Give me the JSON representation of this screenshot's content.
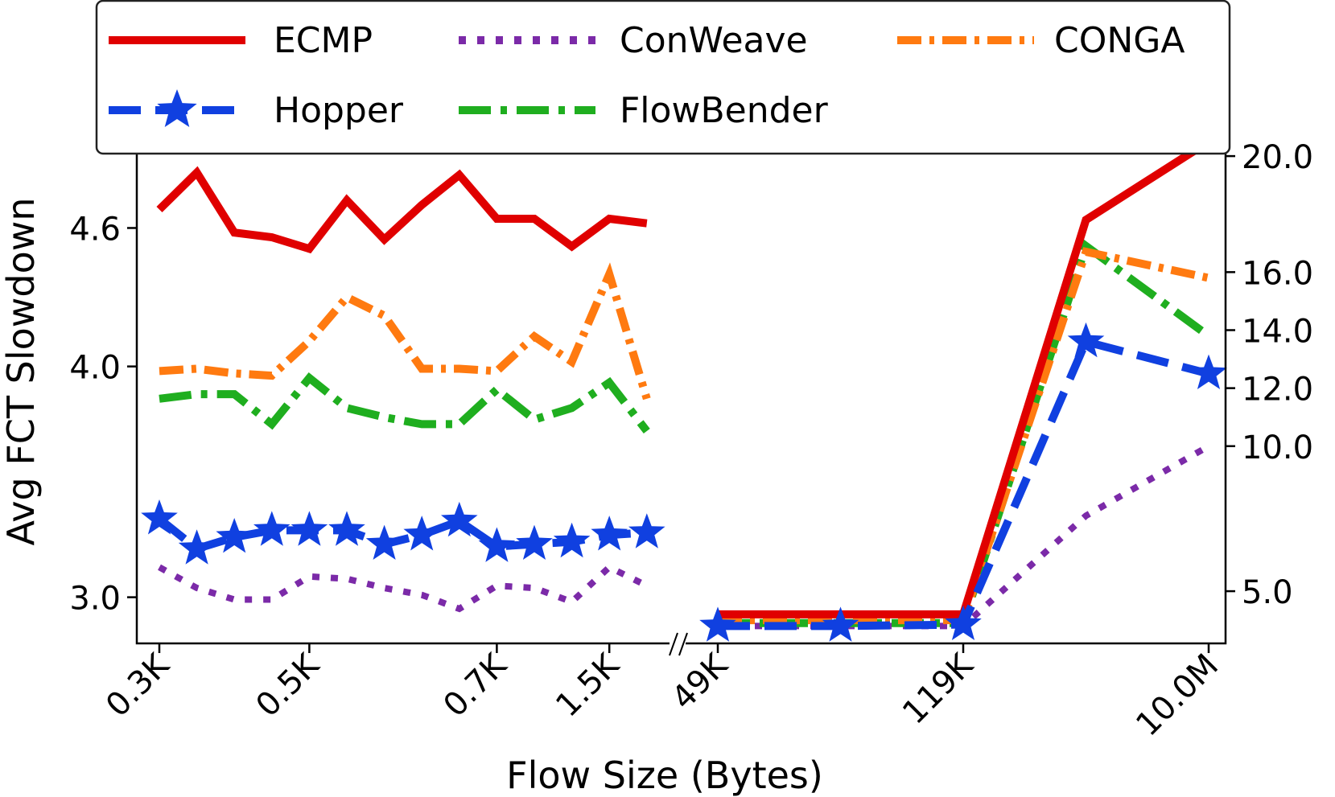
{
  "chart_data": {
    "type": "line",
    "xlabel": "Flow Size (Bytes)",
    "ylabel": "Avg FCT Slowdown",
    "left_panel": {
      "ylim": [
        2.8,
        5.1
      ],
      "yticks": [
        3.0,
        4.0,
        4.6
      ],
      "ytick_labels": [
        "3.0",
        "4.0",
        "4.6"
      ],
      "x_count": 14,
      "xticks": [
        {
          "index": 0,
          "label": "0.3K"
        },
        {
          "index": 4,
          "label": "0.5K"
        },
        {
          "index": 9,
          "label": "0.7K"
        },
        {
          "index": 12,
          "label": "1.5K"
        }
      ],
      "series": [
        {
          "name": "ECMP",
          "values": [
            4.68,
            4.84,
            4.58,
            4.56,
            4.51,
            4.72,
            4.55,
            4.7,
            4.83,
            4.64,
            4.64,
            4.52,
            4.64,
            4.62
          ]
        },
        {
          "name": "ConWeave",
          "values": [
            3.13,
            3.04,
            2.99,
            2.99,
            3.09,
            3.08,
            3.04,
            3.01,
            2.95,
            3.05,
            3.04,
            2.98,
            3.13,
            3.05
          ]
        },
        {
          "name": "CONGA",
          "values": [
            3.98,
            3.99,
            3.97,
            3.96,
            4.11,
            4.3,
            4.22,
            3.99,
            3.99,
            3.98,
            4.13,
            4.02,
            4.4,
            3.86
          ]
        },
        {
          "name": "Hopper",
          "values": [
            3.34,
            3.21,
            3.26,
            3.29,
            3.29,
            3.29,
            3.23,
            3.27,
            3.33,
            3.22,
            3.23,
            3.24,
            3.27,
            3.28
          ]
        },
        {
          "name": "FlowBender",
          "values": [
            3.86,
            3.88,
            3.88,
            3.75,
            3.95,
            3.82,
            3.78,
            3.75,
            3.75,
            3.9,
            3.77,
            3.82,
            3.93,
            3.72
          ]
        }
      ]
    },
    "right_panel": {
      "ylim": [
        3.2,
        21.5
      ],
      "yticks": [
        5.0,
        10.0,
        12.0,
        14.0,
        16.0,
        20.0
      ],
      "ytick_labels": [
        "5.0",
        "10.0",
        "12.0",
        "14.0",
        "16.0",
        "20.0"
      ],
      "x_count": 5,
      "xticks": [
        {
          "index": 0,
          "label": "49K"
        },
        {
          "index": 2,
          "label": "119K"
        },
        {
          "index": 4,
          "label": "10.0M"
        }
      ],
      "series": [
        {
          "name": "ECMP",
          "values": [
            4.2,
            4.2,
            4.2,
            17.8,
            20.5
          ]
        },
        {
          "name": "ConWeave",
          "values": [
            3.8,
            3.8,
            3.8,
            7.6,
            10.0
          ]
        },
        {
          "name": "CONGA",
          "values": [
            4.0,
            4.0,
            4.0,
            16.7,
            15.8
          ]
        },
        {
          "name": "Hopper",
          "values": [
            3.8,
            3.8,
            3.85,
            13.6,
            12.5
          ]
        },
        {
          "name": "FlowBender",
          "values": [
            3.9,
            3.9,
            3.9,
            16.9,
            13.8
          ]
        }
      ]
    },
    "legend": {
      "placement": "top",
      "entries": [
        {
          "name": "ECMP",
          "label": "ECMP",
          "color": "#e00000",
          "style": "solid"
        },
        {
          "name": "ConWeave",
          "label": "ConWeave",
          "color": "#7b2aa8",
          "style": "dotted"
        },
        {
          "name": "CONGA",
          "label": "CONGA",
          "color": "#ff7a10",
          "style": "dashdot"
        },
        {
          "name": "Hopper",
          "label": "Hopper",
          "color": "#1040e0",
          "style": "dashed-star"
        },
        {
          "name": "FlowBender",
          "label": "FlowBender",
          "color": "#1fae1f",
          "style": "dashdot-green"
        }
      ]
    }
  }
}
